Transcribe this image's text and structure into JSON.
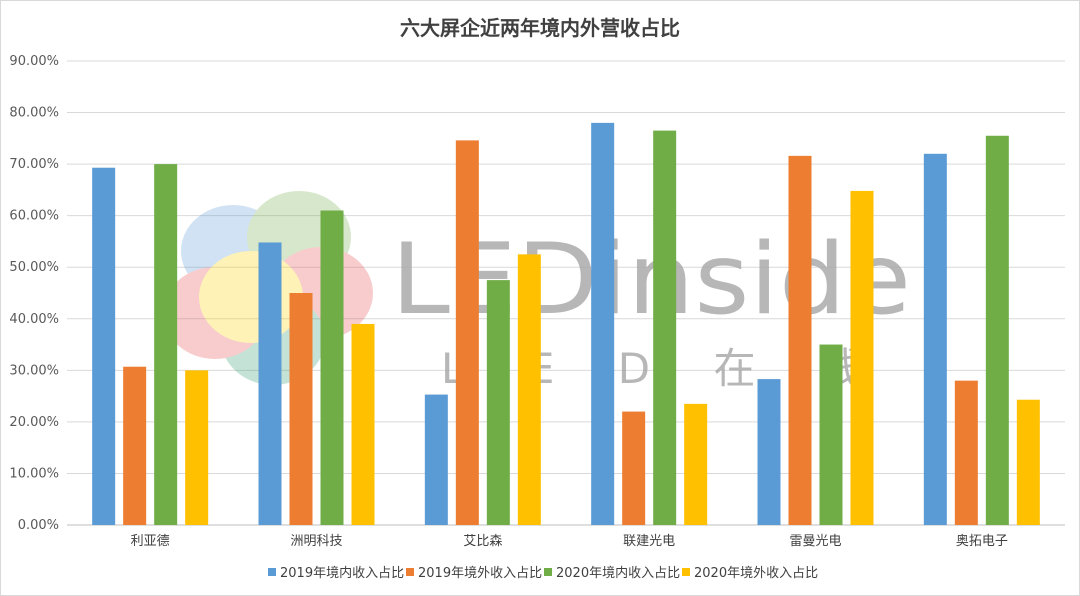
{
  "chart_data": {
    "type": "bar",
    "title": "六大屏企近两年境内外营收占比",
    "xlabel": "",
    "ylabel": "",
    "categories": [
      "利亚德",
      "洲明科技",
      "艾比森",
      "联建光电",
      "雷曼光电",
      "奥拓电子"
    ],
    "series": [
      {
        "name": "2019年境内收入占比",
        "color": "#5b9bd5",
        "values": [
          69.3,
          54.8,
          25.3,
          78.0,
          28.3,
          72.0
        ]
      },
      {
        "name": "2019年境外收入占比",
        "color": "#ed7d31",
        "values": [
          30.7,
          45.0,
          74.6,
          22.0,
          71.6,
          28.0
        ]
      },
      {
        "name": "2020年境内收入占比",
        "color": "#70ad47",
        "values": [
          70.0,
          61.0,
          47.5,
          76.5,
          35.0,
          75.5
        ]
      },
      {
        "name": "2020年境外收入占比",
        "color": "#ffc000",
        "values": [
          30.0,
          39.0,
          52.5,
          23.5,
          64.8,
          24.3
        ]
      }
    ],
    "ylim": [
      0,
      90
    ],
    "ytick_step": 10,
    "y_tick_labels": [
      "0.00%",
      "10.00%",
      "20.00%",
      "30.00%",
      "40.00%",
      "50.00%",
      "60.00%",
      "70.00%",
      "80.00%",
      "90.00%"
    ],
    "grid": true,
    "legend_position": "bottom"
  },
  "watermark": {
    "brand": "LEDinside",
    "sub": "L E D 在 线"
  }
}
